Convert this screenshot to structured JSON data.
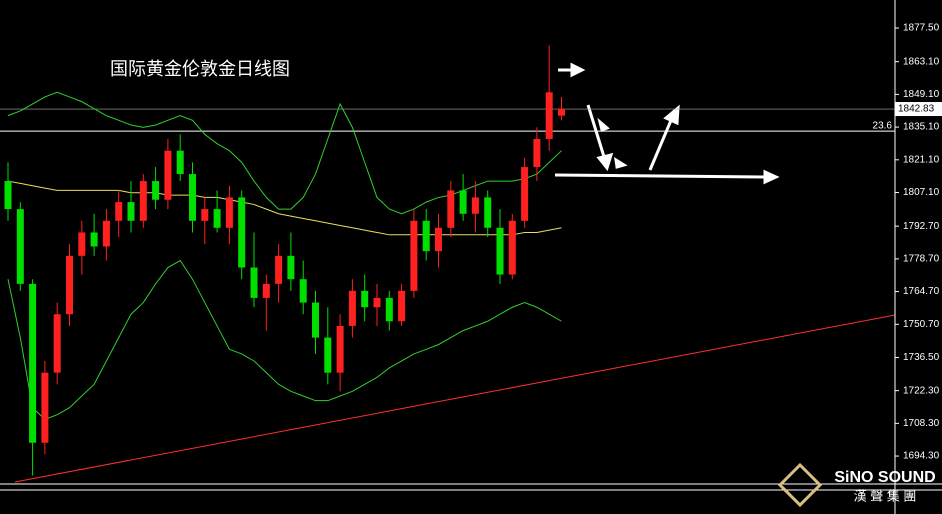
{
  "chart_data": {
    "type": "candlestick",
    "title": "国际黄金伦敦金日线图",
    "ylim": [
      1669.5,
      1889.5
    ],
    "yticks": [
      {
        "value": 1877.5,
        "label": "1877.50"
      },
      {
        "value": 1863.1,
        "label": "1863.10"
      },
      {
        "value": 1849.1,
        "label": "1849.10"
      },
      {
        "value": 1835.1,
        "label": "1835.10"
      },
      {
        "value": 1821.1,
        "label": "1821.10"
      },
      {
        "value": 1807.1,
        "label": "1807.10"
      },
      {
        "value": 1792.7,
        "label": "1792.70"
      },
      {
        "value": 1778.7,
        "label": "1778.70"
      },
      {
        "value": 1764.7,
        "label": "1764.70"
      },
      {
        "value": 1750.7,
        "label": "1750.70"
      },
      {
        "value": 1736.5,
        "label": "1736.50"
      },
      {
        "value": 1722.3,
        "label": "1722.30"
      },
      {
        "value": 1708.3,
        "label": "1708.30"
      },
      {
        "value": 1694.3,
        "label": "1694.30"
      }
    ],
    "up_color": "#ff2020",
    "down_color": "#00e000",
    "ohlc": [
      [
        1812,
        1820,
        1795,
        1800
      ],
      [
        1800,
        1803,
        1765,
        1768
      ],
      [
        1768,
        1770,
        1686,
        1700
      ],
      [
        1700,
        1735,
        1695,
        1730
      ],
      [
        1730,
        1760,
        1725,
        1755
      ],
      [
        1755,
        1785,
        1750,
        1780
      ],
      [
        1780,
        1795,
        1772,
        1790
      ],
      [
        1790,
        1798,
        1780,
        1784
      ],
      [
        1784,
        1800,
        1778,
        1795
      ],
      [
        1795,
        1808,
        1788,
        1803
      ],
      [
        1803,
        1812,
        1790,
        1795
      ],
      [
        1795,
        1815,
        1792,
        1812
      ],
      [
        1812,
        1818,
        1800,
        1804
      ],
      [
        1804,
        1830,
        1800,
        1825
      ],
      [
        1825,
        1832,
        1812,
        1815
      ],
      [
        1815,
        1820,
        1790,
        1795
      ],
      [
        1795,
        1805,
        1785,
        1800
      ],
      [
        1800,
        1808,
        1790,
        1792
      ],
      [
        1792,
        1810,
        1785,
        1805
      ],
      [
        1805,
        1808,
        1770,
        1775
      ],
      [
        1775,
        1790,
        1758,
        1762
      ],
      [
        1762,
        1772,
        1748,
        1768
      ],
      [
        1768,
        1785,
        1760,
        1780
      ],
      [
        1780,
        1790,
        1765,
        1770
      ],
      [
        1770,
        1778,
        1755,
        1760
      ],
      [
        1760,
        1765,
        1738,
        1745
      ],
      [
        1745,
        1758,
        1725,
        1730
      ],
      [
        1730,
        1755,
        1722,
        1750
      ],
      [
        1750,
        1770,
        1745,
        1765
      ],
      [
        1765,
        1772,
        1752,
        1758
      ],
      [
        1758,
        1768,
        1750,
        1762
      ],
      [
        1762,
        1765,
        1748,
        1752
      ],
      [
        1752,
        1768,
        1750,
        1765
      ],
      [
        1765,
        1800,
        1762,
        1795
      ],
      [
        1795,
        1800,
        1778,
        1782
      ],
      [
        1782,
        1798,
        1775,
        1792
      ],
      [
        1792,
        1812,
        1788,
        1808
      ],
      [
        1808,
        1815,
        1795,
        1798
      ],
      [
        1798,
        1812,
        1790,
        1805
      ],
      [
        1805,
        1808,
        1788,
        1792
      ],
      [
        1792,
        1800,
        1768,
        1772
      ],
      [
        1772,
        1798,
        1770,
        1795
      ],
      [
        1795,
        1822,
        1792,
        1818
      ],
      [
        1818,
        1835,
        1812,
        1830
      ],
      [
        1830,
        1870,
        1825,
        1850
      ],
      [
        1840,
        1848,
        1838,
        1843
      ]
    ],
    "overlays": [
      {
        "color": "#30d030",
        "values": [
          1840,
          1842,
          1845,
          1848,
          1850,
          1848,
          1846,
          1843,
          1840,
          1838,
          1836,
          1835,
          1836,
          1838,
          1840,
          1838,
          1832,
          1828,
          1825,
          1820,
          1812,
          1805,
          1800,
          1800,
          1805,
          1815,
          1830,
          1845,
          1835,
          1820,
          1805,
          1800,
          1798,
          1800,
          1803,
          1805,
          1806,
          1808,
          1810,
          1812,
          1812,
          1812,
          1813,
          1815,
          1820,
          1825
        ]
      },
      {
        "color": "#30d030",
        "values": [
          1770,
          1745,
          1715,
          1710,
          1712,
          1715,
          1720,
          1725,
          1735,
          1745,
          1755,
          1760,
          1768,
          1775,
          1778,
          1770,
          1760,
          1750,
          1740,
          1738,
          1735,
          1730,
          1725,
          1722,
          1720,
          1718,
          1718,
          1720,
          1722,
          1725,
          1728,
          1732,
          1735,
          1738,
          1740,
          1742,
          1745,
          1748,
          1750,
          1752,
          1755,
          1758,
          1760,
          1758,
          1755,
          1752
        ]
      },
      {
        "color": "#e8e060",
        "values": [
          1812,
          1811,
          1810,
          1809,
          1808,
          1808,
          1808,
          1808,
          1808,
          1808,
          1807,
          1807,
          1807,
          1806,
          1806,
          1806,
          1805,
          1805,
          1804,
          1803,
          1802,
          1800,
          1798,
          1797,
          1796,
          1795,
          1794,
          1793,
          1792,
          1791,
          1790,
          1789,
          1789,
          1789,
          1789,
          1789,
          1789,
          1789,
          1789,
          1789,
          1789,
          1789,
          1790,
          1790,
          1791,
          1792
        ]
      }
    ],
    "price_line": {
      "value": 1842.83,
      "label": "1842.83"
    },
    "fib_level": {
      "value": 1833.4,
      "label": "23.6"
    },
    "logo": {
      "name": "SiNO SOUND",
      "subtitle": "漢 聲 集 團"
    }
  }
}
